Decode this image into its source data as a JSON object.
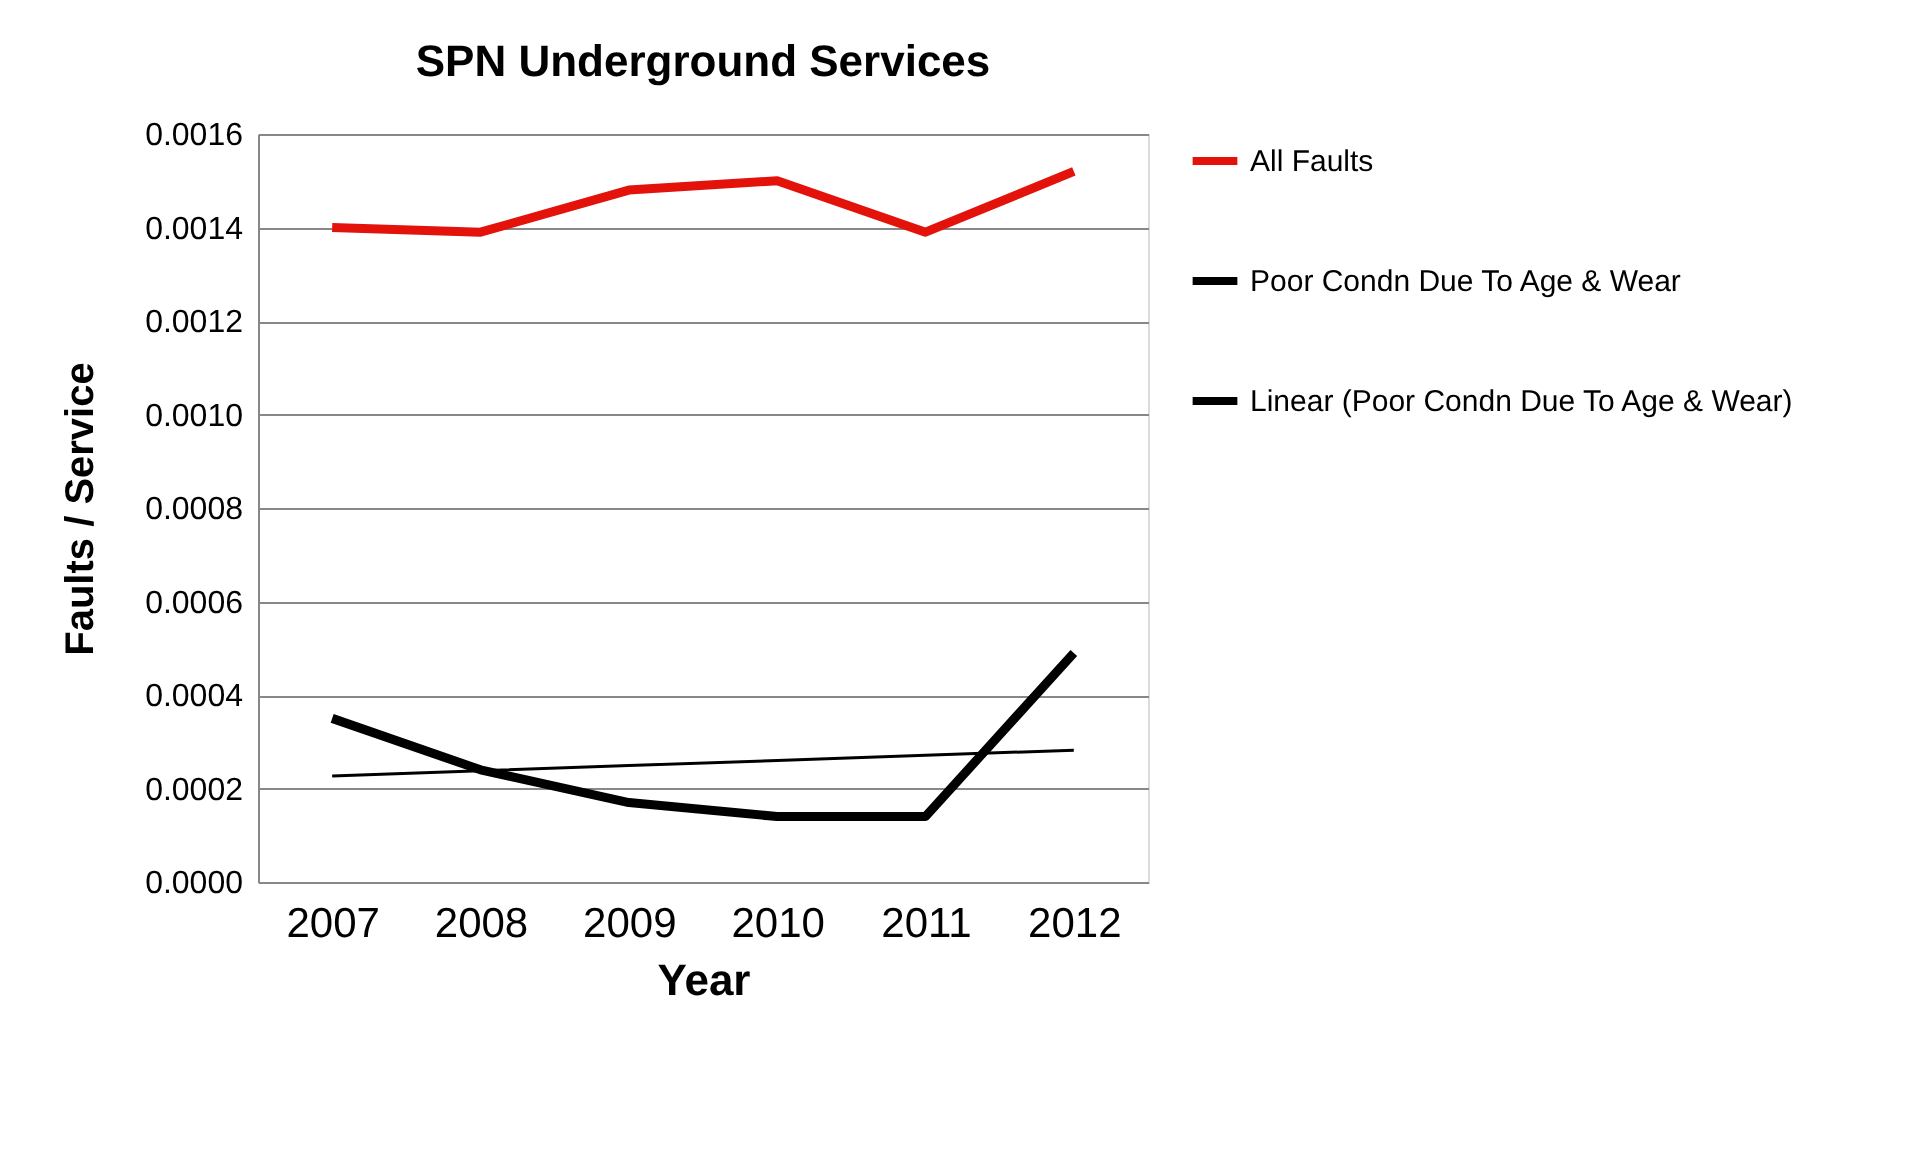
{
  "chart_data": {
    "type": "line",
    "title": "SPN Underground Services",
    "xlabel": "Year",
    "ylabel": "Faults / Service",
    "categories": [
      "2007",
      "2008",
      "2009",
      "2010",
      "2011",
      "2012"
    ],
    "series": [
      {
        "name": "All Faults",
        "color": "#e3120b",
        "values": [
          0.0014,
          0.00139,
          0.00148,
          0.0015,
          0.00139,
          0.00152
        ]
      },
      {
        "name": "Poor Condn Due To Age & Wear",
        "color": "#000000",
        "values": [
          0.00035,
          0.00024,
          0.00017,
          0.00014,
          0.00014,
          0.00049
        ]
      },
      {
        "name": "Linear (Poor Condn Due To Age & Wear)",
        "color": "#000000",
        "type": "line",
        "values": [
          0.000227,
          0.000238,
          0.000249,
          0.00026,
          0.000271,
          0.000282
        ]
      }
    ],
    "ylim": [
      0,
      0.0016
    ],
    "yticks": [
      {
        "value": 0,
        "label": "0.0000"
      },
      {
        "value": 0.0002,
        "label": "0.0002"
      },
      {
        "value": 0.0004,
        "label": "0.0004"
      },
      {
        "value": 0.0006,
        "label": "0.0006"
      },
      {
        "value": 0.0008,
        "label": "0.0008"
      },
      {
        "value": 0.001,
        "label": "0.0010"
      },
      {
        "value": 0.0012,
        "label": "0.0012"
      },
      {
        "value": 0.0014,
        "label": "0.0014"
      },
      {
        "value": 0.0016,
        "label": "0.0016"
      }
    ],
    "grid": "y",
    "legend": "right",
    "marker": "none",
    "line_style": "solid"
  }
}
